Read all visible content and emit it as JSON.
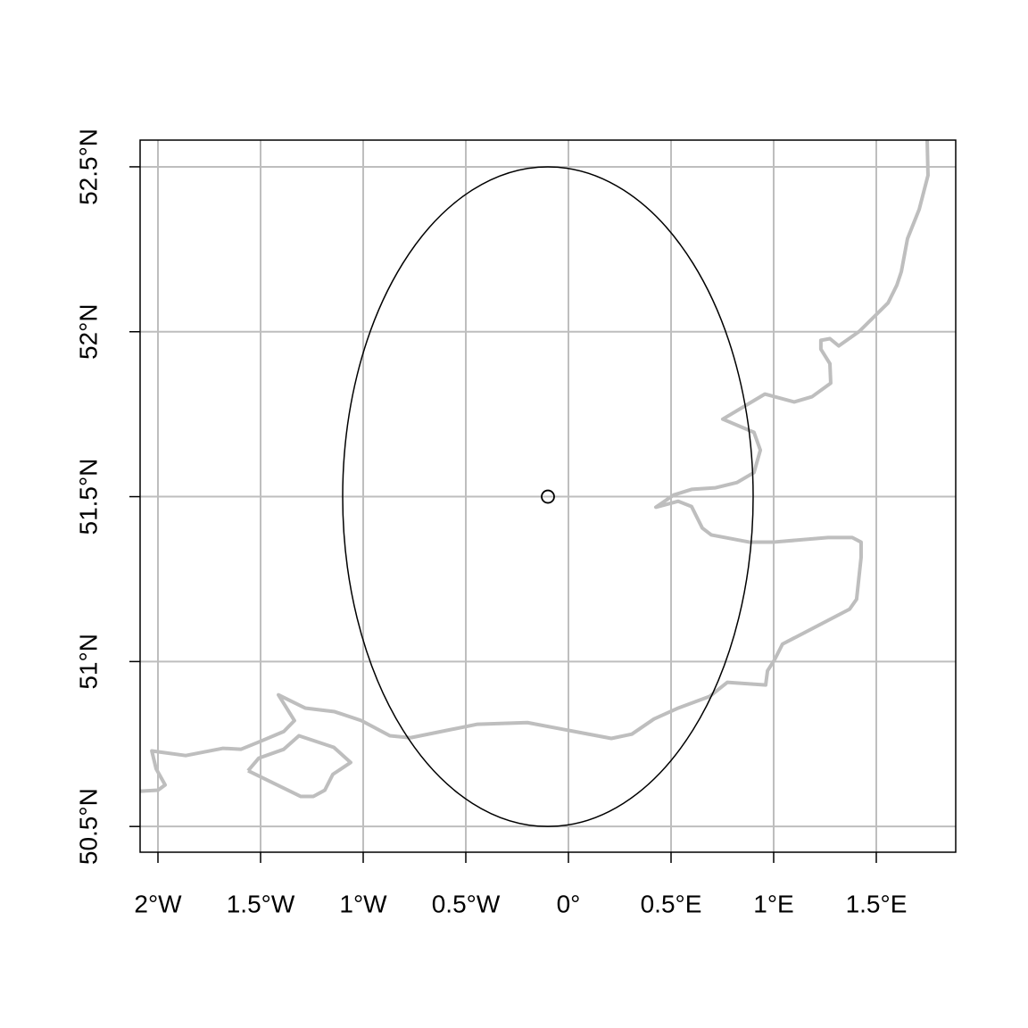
{
  "chart_data": {
    "type": "map",
    "xlim": [
      -2.087,
      1.887
    ],
    "ylim": [
      50.422,
      52.581
    ],
    "xticks": [
      {
        "value": -2,
        "label": "2°W"
      },
      {
        "value": -1.5,
        "label": "1.5°W"
      },
      {
        "value": -1,
        "label": "1°W"
      },
      {
        "value": -0.5,
        "label": "0.5°W"
      },
      {
        "value": 0,
        "label": "0°"
      },
      {
        "value": 0.5,
        "label": "0.5°E"
      },
      {
        "value": 1,
        "label": "1°E"
      },
      {
        "value": 1.5,
        "label": "1.5°E"
      }
    ],
    "yticks": [
      {
        "value": 50.5,
        "label": "50.5°N"
      },
      {
        "value": 51,
        "label": "51°N"
      },
      {
        "value": 51.5,
        "label": "51.5°N"
      },
      {
        "value": 52,
        "label": "52°N"
      },
      {
        "value": 52.5,
        "label": "52.5°N"
      }
    ],
    "grid": true,
    "grid_color": "#bebebe",
    "coastline": {
      "color": "#bebebe",
      "lines": [
        {
          "lon": [
            1.748,
            1.752,
            1.709,
            1.652,
            1.622,
            1.6,
            1.557,
            1.417,
            1.317,
            1.274,
            1.23,
            1.23,
            1.274,
            1.278,
            1.187,
            1.1,
            0.957,
            0.752,
            0.904,
            0.935,
            0.904,
            0.822,
            0.717,
            0.6,
            0.513,
            0.426,
            0.535,
            0.6,
            0.652,
            0.696,
            0.883,
            0.996,
            1.265,
            1.383,
            1.426,
            1.426,
            1.404,
            1.37,
            1.043,
            1.004,
            0.97,
            0.961,
            0.774,
            0.687,
            0.535,
            0.417,
            0.309,
            0.209,
            -0.2,
            -0.443,
            -0.77,
            -0.87,
            -1.009,
            -1.139,
            -1.283,
            -1.413,
            -1.335,
            -1.387,
            -1.509,
            -1.596,
            -1.683,
            -1.865,
            -2.03,
            -2.009,
            -1.965,
            -2.0,
            -2.087
          ],
          "lat": [
            52.58,
            52.474,
            52.371,
            52.282,
            52.182,
            52.141,
            52.087,
            52.001,
            51.957,
            51.979,
            51.974,
            51.947,
            51.903,
            51.844,
            51.803,
            51.787,
            51.811,
            51.735,
            51.695,
            51.641,
            51.573,
            51.543,
            51.527,
            51.522,
            51.505,
            51.468,
            51.486,
            51.47,
            51.405,
            51.384,
            51.362,
            51.362,
            51.376,
            51.376,
            51.362,
            51.316,
            51.189,
            51.159,
            51.053,
            51.005,
            50.972,
            50.929,
            50.937,
            50.894,
            50.859,
            50.826,
            50.78,
            50.767,
            50.815,
            50.81,
            50.769,
            50.775,
            50.821,
            50.848,
            50.859,
            50.899,
            50.821,
            50.788,
            50.756,
            50.734,
            50.737,
            50.715,
            50.729,
            50.675,
            50.626,
            50.61,
            50.607
          ]
        },
        {
          "lon": [
            -1.561,
            -1.509,
            -1.387,
            -1.313,
            -1.143,
            -1.061,
            -1.148,
            -1.187,
            -1.243,
            -1.304,
            -1.561
          ],
          "lat": [
            50.669,
            50.707,
            50.734,
            50.775,
            50.74,
            50.694,
            50.658,
            50.61,
            50.591,
            50.591,
            50.669
          ]
        }
      ]
    },
    "ellipse": {
      "lon": -0.1,
      "lat": 51.5,
      "radius_lon": 1,
      "radius_lat": 1,
      "color": "#000000"
    },
    "point": {
      "lon": -0.1,
      "lat": 51.5,
      "color": "#000000"
    }
  }
}
